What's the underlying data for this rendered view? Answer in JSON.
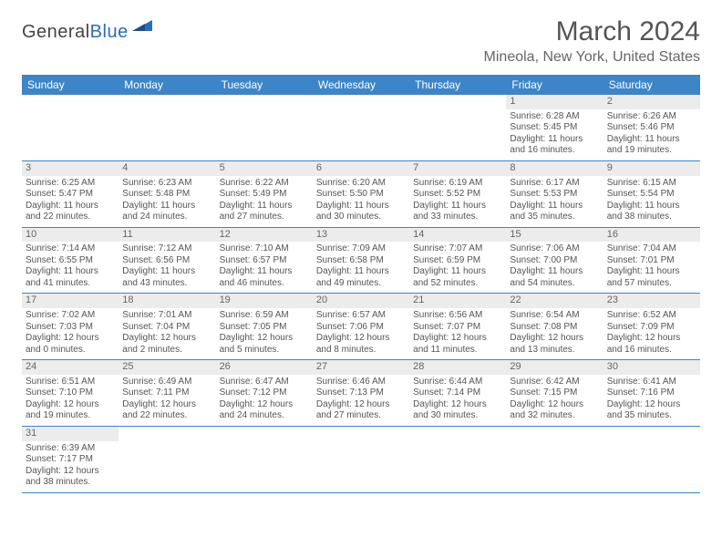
{
  "brand": {
    "name1": "General",
    "name2": "Blue"
  },
  "title": "March 2024",
  "location": "Mineola, New York, United States",
  "colors": {
    "header_bg": "#3d85c6",
    "header_text": "#ffffff",
    "daynum_bg": "#ececec",
    "body_text": "#555555",
    "rule": "#3d85c6"
  },
  "typography": {
    "title_fontsize": 30,
    "location_fontsize": 16,
    "cell_fontsize": 10
  },
  "dayNames": [
    "Sunday",
    "Monday",
    "Tuesday",
    "Wednesday",
    "Thursday",
    "Friday",
    "Saturday"
  ],
  "calendar": {
    "type": "table",
    "columns": 7,
    "startOffset": 5,
    "days": [
      {
        "n": 1,
        "sunrise": "6:28 AM",
        "sunset": "5:45 PM",
        "daylight": "11 hours and 16 minutes."
      },
      {
        "n": 2,
        "sunrise": "6:26 AM",
        "sunset": "5:46 PM",
        "daylight": "11 hours and 19 minutes."
      },
      {
        "n": 3,
        "sunrise": "6:25 AM",
        "sunset": "5:47 PM",
        "daylight": "11 hours and 22 minutes."
      },
      {
        "n": 4,
        "sunrise": "6:23 AM",
        "sunset": "5:48 PM",
        "daylight": "11 hours and 24 minutes."
      },
      {
        "n": 5,
        "sunrise": "6:22 AM",
        "sunset": "5:49 PM",
        "daylight": "11 hours and 27 minutes."
      },
      {
        "n": 6,
        "sunrise": "6:20 AM",
        "sunset": "5:50 PM",
        "daylight": "11 hours and 30 minutes."
      },
      {
        "n": 7,
        "sunrise": "6:19 AM",
        "sunset": "5:52 PM",
        "daylight": "11 hours and 33 minutes."
      },
      {
        "n": 8,
        "sunrise": "6:17 AM",
        "sunset": "5:53 PM",
        "daylight": "11 hours and 35 minutes."
      },
      {
        "n": 9,
        "sunrise": "6:15 AM",
        "sunset": "5:54 PM",
        "daylight": "11 hours and 38 minutes."
      },
      {
        "n": 10,
        "sunrise": "7:14 AM",
        "sunset": "6:55 PM",
        "daylight": "11 hours and 41 minutes."
      },
      {
        "n": 11,
        "sunrise": "7:12 AM",
        "sunset": "6:56 PM",
        "daylight": "11 hours and 43 minutes."
      },
      {
        "n": 12,
        "sunrise": "7:10 AM",
        "sunset": "6:57 PM",
        "daylight": "11 hours and 46 minutes."
      },
      {
        "n": 13,
        "sunrise": "7:09 AM",
        "sunset": "6:58 PM",
        "daylight": "11 hours and 49 minutes."
      },
      {
        "n": 14,
        "sunrise": "7:07 AM",
        "sunset": "6:59 PM",
        "daylight": "11 hours and 52 minutes."
      },
      {
        "n": 15,
        "sunrise": "7:06 AM",
        "sunset": "7:00 PM",
        "daylight": "11 hours and 54 minutes."
      },
      {
        "n": 16,
        "sunrise": "7:04 AM",
        "sunset": "7:01 PM",
        "daylight": "11 hours and 57 minutes."
      },
      {
        "n": 17,
        "sunrise": "7:02 AM",
        "sunset": "7:03 PM",
        "daylight": "12 hours and 0 minutes."
      },
      {
        "n": 18,
        "sunrise": "7:01 AM",
        "sunset": "7:04 PM",
        "daylight": "12 hours and 2 minutes."
      },
      {
        "n": 19,
        "sunrise": "6:59 AM",
        "sunset": "7:05 PM",
        "daylight": "12 hours and 5 minutes."
      },
      {
        "n": 20,
        "sunrise": "6:57 AM",
        "sunset": "7:06 PM",
        "daylight": "12 hours and 8 minutes."
      },
      {
        "n": 21,
        "sunrise": "6:56 AM",
        "sunset": "7:07 PM",
        "daylight": "12 hours and 11 minutes."
      },
      {
        "n": 22,
        "sunrise": "6:54 AM",
        "sunset": "7:08 PM",
        "daylight": "12 hours and 13 minutes."
      },
      {
        "n": 23,
        "sunrise": "6:52 AM",
        "sunset": "7:09 PM",
        "daylight": "12 hours and 16 minutes."
      },
      {
        "n": 24,
        "sunrise": "6:51 AM",
        "sunset": "7:10 PM",
        "daylight": "12 hours and 19 minutes."
      },
      {
        "n": 25,
        "sunrise": "6:49 AM",
        "sunset": "7:11 PM",
        "daylight": "12 hours and 22 minutes."
      },
      {
        "n": 26,
        "sunrise": "6:47 AM",
        "sunset": "7:12 PM",
        "daylight": "12 hours and 24 minutes."
      },
      {
        "n": 27,
        "sunrise": "6:46 AM",
        "sunset": "7:13 PM",
        "daylight": "12 hours and 27 minutes."
      },
      {
        "n": 28,
        "sunrise": "6:44 AM",
        "sunset": "7:14 PM",
        "daylight": "12 hours and 30 minutes."
      },
      {
        "n": 29,
        "sunrise": "6:42 AM",
        "sunset": "7:15 PM",
        "daylight": "12 hours and 32 minutes."
      },
      {
        "n": 30,
        "sunrise": "6:41 AM",
        "sunset": "7:16 PM",
        "daylight": "12 hours and 35 minutes."
      },
      {
        "n": 31,
        "sunrise": "6:39 AM",
        "sunset": "7:17 PM",
        "daylight": "12 hours and 38 minutes."
      }
    ]
  },
  "labels": {
    "sunrise": "Sunrise: ",
    "sunset": "Sunset: ",
    "daylight": "Daylight: "
  }
}
